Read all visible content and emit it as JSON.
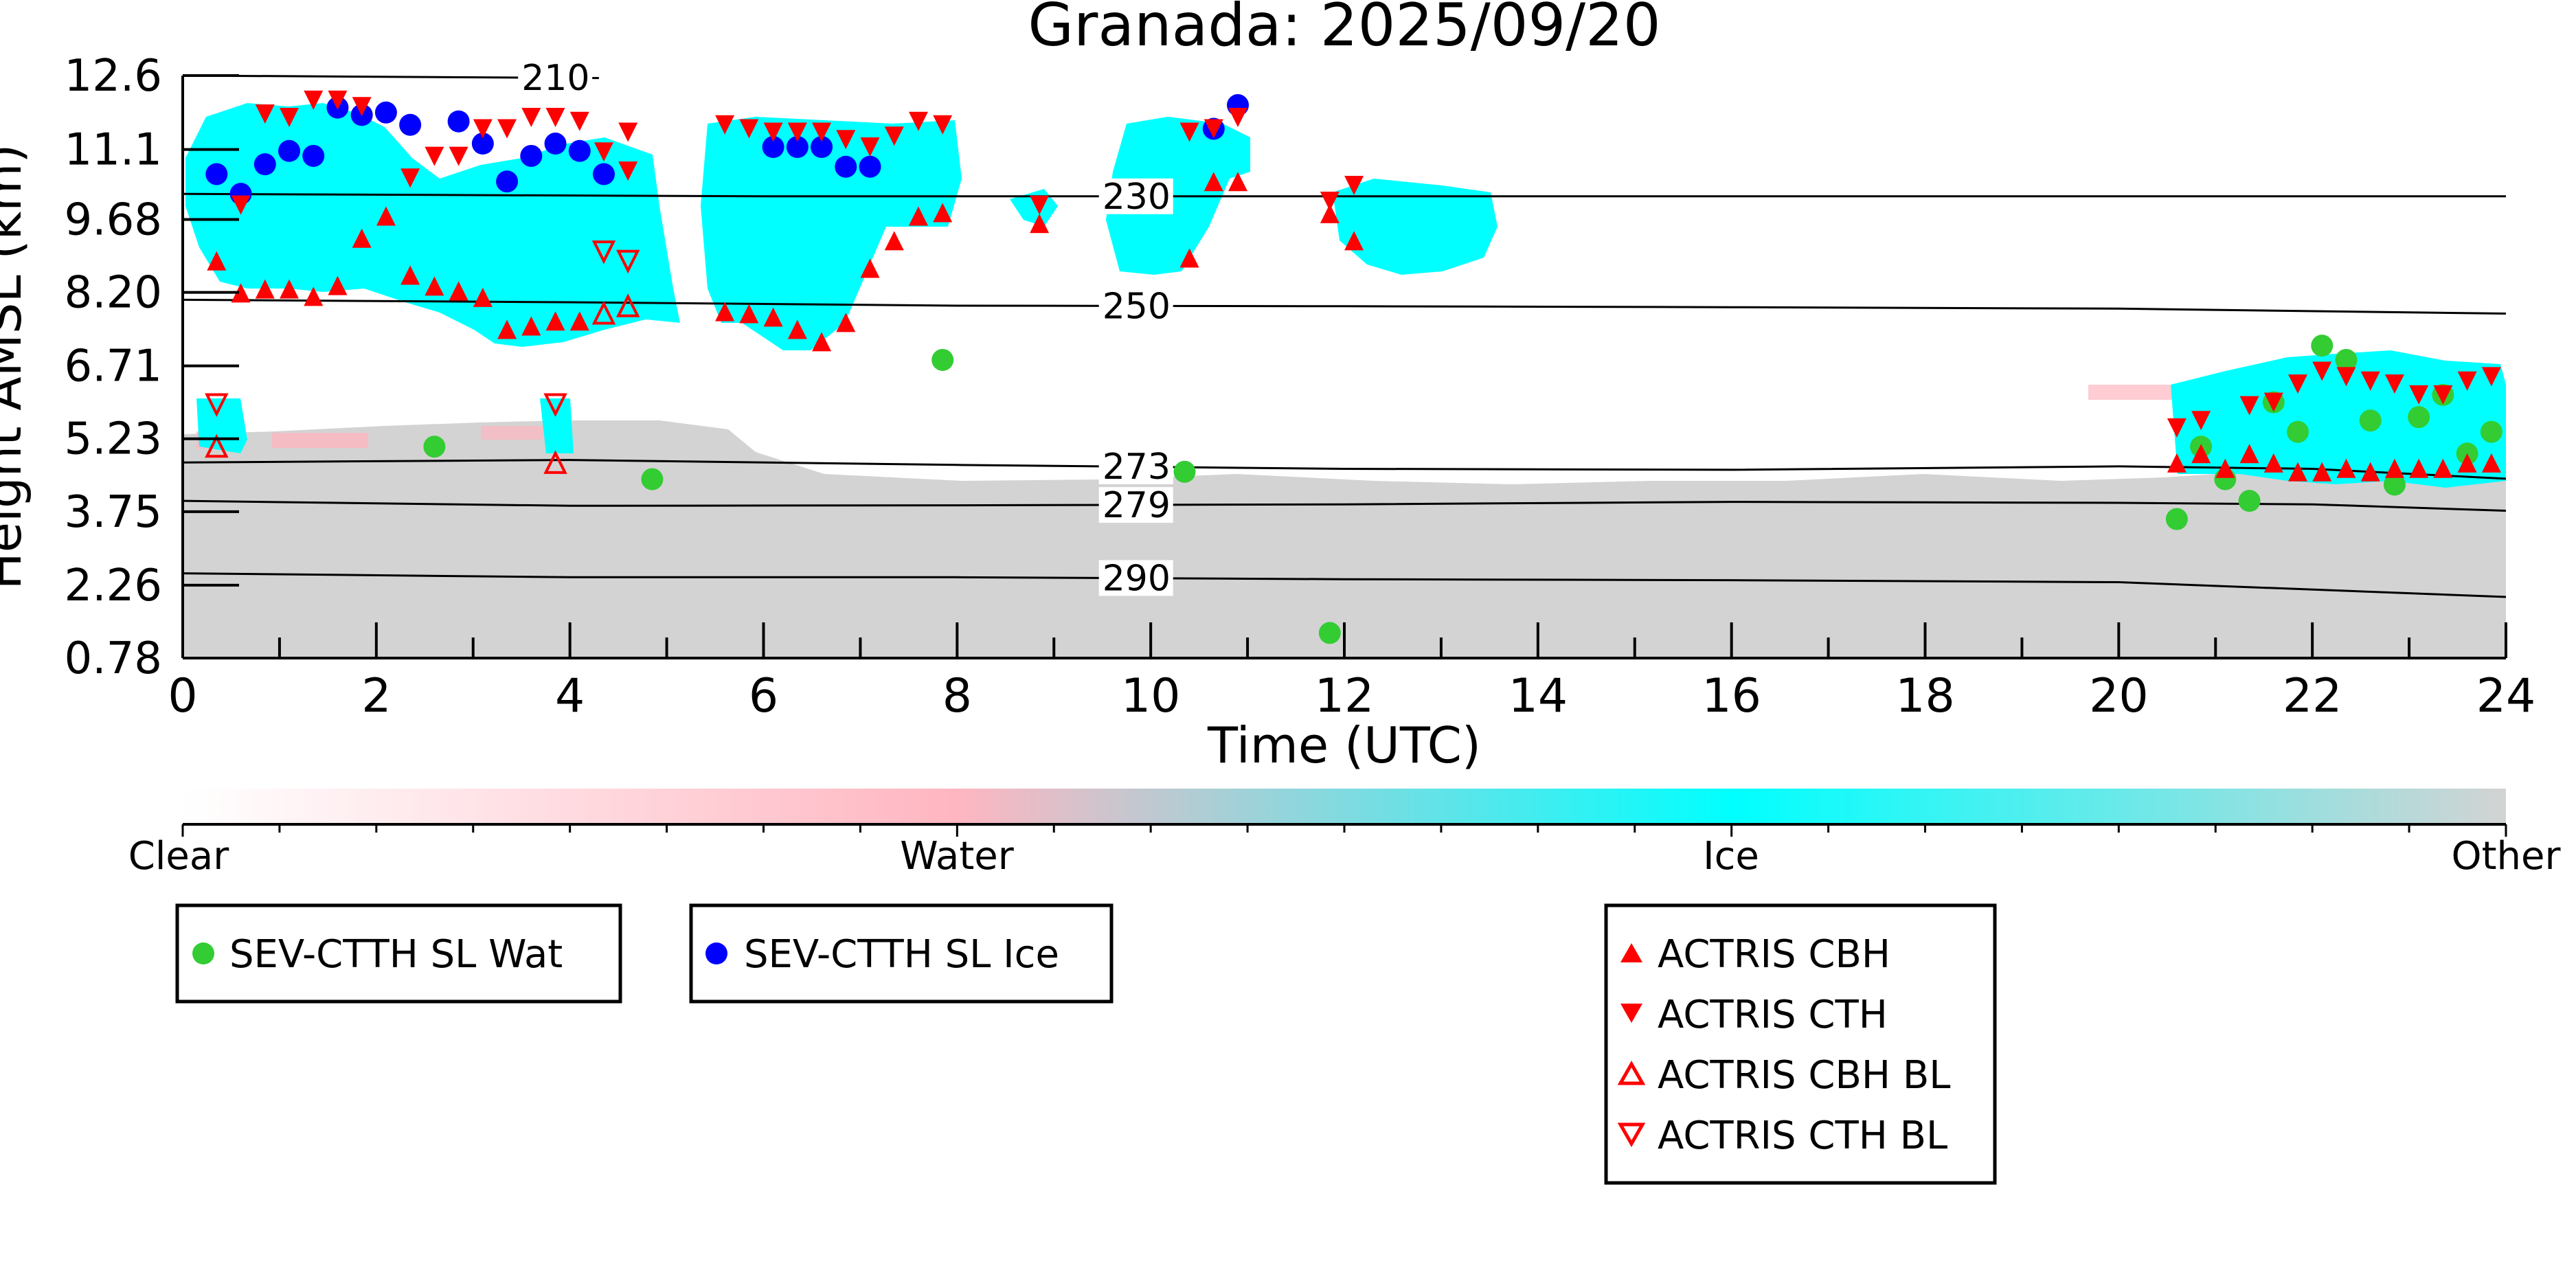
{
  "chart_data": {
    "type": "scatter",
    "title": "Granada: 2025/09/20",
    "xlabel": "Time (UTC)",
    "ylabel": "Height AMSL (km)",
    "xlim": [
      0,
      24
    ],
    "ylim": [
      0.78,
      12.6
    ],
    "x_ticks": [
      "0",
      "2",
      "4",
      "6",
      "8",
      "10",
      "12",
      "14",
      "16",
      "18",
      "20",
      "22",
      "24"
    ],
    "y_ticks": [
      "0.78",
      "2.26",
      "3.75",
      "5.23",
      "6.71",
      "8.20",
      "9.68",
      "11.1",
      "12.6"
    ],
    "y_tick_values": [
      0.78,
      2.26,
      3.75,
      5.23,
      6.71,
      8.2,
      9.68,
      11.1,
      12.6
    ],
    "colorbar": {
      "labels": [
        "Clear",
        "Water",
        "Ice",
        "Other"
      ],
      "colors": [
        "#ffffff",
        "#ffb6c1",
        "#00ffff",
        "#d3d3d3"
      ]
    },
    "isotherms": [
      {
        "label": "210",
        "label_x": 3.5,
        "points": [
          [
            0,
            12.6
          ],
          [
            4.3,
            12.55
          ]
        ]
      },
      {
        "label": "230",
        "label_x": 9.5,
        "points": [
          [
            0,
            10.2
          ],
          [
            6,
            10.15
          ],
          [
            12,
            10.15
          ],
          [
            18,
            10.15
          ],
          [
            24,
            10.15
          ]
        ]
      },
      {
        "label": "250",
        "label_x": 9.5,
        "points": [
          [
            0,
            8.05
          ],
          [
            4,
            8.0
          ],
          [
            8,
            7.93
          ],
          [
            12,
            7.92
          ],
          [
            16,
            7.9
          ],
          [
            20,
            7.87
          ],
          [
            24,
            7.77
          ]
        ]
      },
      {
        "label": "273",
        "label_x": 9.5,
        "points": [
          [
            0,
            4.75
          ],
          [
            4,
            4.8
          ],
          [
            8,
            4.7
          ],
          [
            12,
            4.62
          ],
          [
            16,
            4.6
          ],
          [
            20,
            4.67
          ],
          [
            22,
            4.62
          ],
          [
            24,
            4.42
          ]
        ]
      },
      {
        "label": "279",
        "label_x": 9.5,
        "points": [
          [
            0,
            3.97
          ],
          [
            4,
            3.87
          ],
          [
            8,
            3.88
          ],
          [
            12,
            3.9
          ],
          [
            16,
            3.95
          ],
          [
            20,
            3.93
          ],
          [
            22,
            3.9
          ],
          [
            24,
            3.77
          ]
        ]
      },
      {
        "label": "290",
        "label_x": 9.5,
        "points": [
          [
            0,
            2.5
          ],
          [
            4,
            2.42
          ],
          [
            8,
            2.42
          ],
          [
            12,
            2.38
          ],
          [
            16,
            2.36
          ],
          [
            20,
            2.32
          ],
          [
            24,
            2.02
          ]
        ]
      }
    ],
    "series": [
      {
        "name": "SEV-CTTH SL Wat",
        "marker": "circle",
        "color": "#33cc33",
        "points": [
          [
            2.6,
            5.07
          ],
          [
            4.85,
            4.41
          ],
          [
            7.85,
            6.83
          ],
          [
            10.35,
            4.56
          ],
          [
            11.85,
            1.29
          ],
          [
            20.6,
            3.6
          ],
          [
            20.85,
            5.07
          ],
          [
            21.1,
            4.41
          ],
          [
            21.35,
            3.97
          ],
          [
            21.6,
            5.97
          ],
          [
            21.85,
            5.37
          ],
          [
            22.1,
            7.12
          ],
          [
            22.35,
            6.83
          ],
          [
            22.6,
            5.6
          ],
          [
            22.85,
            4.3
          ],
          [
            23.1,
            5.67
          ],
          [
            23.35,
            6.12
          ],
          [
            23.6,
            4.93
          ],
          [
            23.85,
            5.37
          ]
        ]
      },
      {
        "name": "SEV-CTTH SL Ice",
        "marker": "circle",
        "color": "#0000ff",
        "points": [
          [
            0.35,
            10.6
          ],
          [
            0.6,
            10.2
          ],
          [
            0.85,
            10.8
          ],
          [
            1.1,
            11.07
          ],
          [
            1.35,
            10.97
          ],
          [
            1.6,
            11.95
          ],
          [
            1.85,
            11.8
          ],
          [
            2.1,
            11.85
          ],
          [
            2.35,
            11.6
          ],
          [
            2.85,
            11.67
          ],
          [
            3.1,
            11.22
          ],
          [
            3.35,
            10.45
          ],
          [
            3.6,
            10.97
          ],
          [
            3.85,
            11.22
          ],
          [
            4.1,
            11.07
          ],
          [
            4.35,
            10.6
          ],
          [
            6.1,
            11.15
          ],
          [
            6.35,
            11.15
          ],
          [
            6.6,
            11.15
          ],
          [
            6.85,
            10.75
          ],
          [
            7.1,
            10.75
          ],
          [
            10.65,
            11.52
          ],
          [
            10.9,
            12.0
          ]
        ]
      },
      {
        "name": "ACTRIS CBH",
        "marker": "triangle-up",
        "color": "#ff0000",
        "points": [
          [
            0.35,
            8.84
          ],
          [
            0.6,
            8.19
          ],
          [
            0.85,
            8.27
          ],
          [
            1.1,
            8.27
          ],
          [
            1.35,
            8.12
          ],
          [
            1.6,
            8.34
          ],
          [
            1.85,
            9.3
          ],
          [
            2.1,
            9.75
          ],
          [
            2.35,
            8.55
          ],
          [
            2.6,
            8.33
          ],
          [
            2.85,
            8.23
          ],
          [
            3.1,
            8.1
          ],
          [
            3.35,
            7.45
          ],
          [
            3.6,
            7.52
          ],
          [
            3.85,
            7.62
          ],
          [
            4.1,
            7.62
          ],
          [
            5.6,
            7.81
          ],
          [
            5.85,
            7.77
          ],
          [
            6.1,
            7.7
          ],
          [
            6.35,
            7.45
          ],
          [
            6.6,
            7.2
          ],
          [
            6.85,
            7.59
          ],
          [
            7.1,
            8.69
          ],
          [
            7.35,
            9.25
          ],
          [
            7.6,
            9.75
          ],
          [
            7.85,
            9.82
          ],
          [
            8.85,
            9.6
          ],
          [
            10.4,
            8.9
          ],
          [
            10.65,
            10.45
          ],
          [
            10.9,
            10.45
          ],
          [
            11.85,
            9.8
          ],
          [
            12.1,
            9.25
          ],
          [
            20.6,
            4.74
          ],
          [
            20.85,
            4.93
          ],
          [
            21.1,
            4.63
          ],
          [
            21.35,
            4.93
          ],
          [
            21.6,
            4.74
          ],
          [
            21.85,
            4.56
          ],
          [
            22.1,
            4.56
          ],
          [
            22.35,
            4.63
          ],
          [
            22.6,
            4.56
          ],
          [
            22.85,
            4.63
          ],
          [
            23.1,
            4.63
          ],
          [
            23.35,
            4.63
          ],
          [
            23.6,
            4.74
          ],
          [
            23.85,
            4.74
          ]
        ]
      },
      {
        "name": "ACTRIS CTH",
        "marker": "triangle-down",
        "color": "#ff0000",
        "points": [
          [
            0.6,
            9.97
          ],
          [
            0.85,
            11.82
          ],
          [
            1.1,
            11.75
          ],
          [
            1.35,
            12.1
          ],
          [
            1.6,
            12.1
          ],
          [
            1.85,
            11.97
          ],
          [
            2.35,
            10.52
          ],
          [
            2.6,
            10.96
          ],
          [
            2.85,
            10.96
          ],
          [
            3.1,
            11.52
          ],
          [
            3.35,
            11.52
          ],
          [
            3.6,
            11.75
          ],
          [
            3.85,
            11.75
          ],
          [
            4.1,
            11.67
          ],
          [
            4.35,
            11.05
          ],
          [
            4.6,
            10.66
          ],
          [
            4.6,
            11.45
          ],
          [
            5.6,
            11.6
          ],
          [
            5.85,
            11.52
          ],
          [
            6.1,
            11.45
          ],
          [
            6.35,
            11.45
          ],
          [
            6.6,
            11.45
          ],
          [
            6.85,
            11.3
          ],
          [
            7.1,
            11.15
          ],
          [
            7.35,
            11.37
          ],
          [
            7.6,
            11.67
          ],
          [
            7.85,
            11.6
          ],
          [
            8.85,
            9.97
          ],
          [
            10.4,
            11.45
          ],
          [
            10.65,
            11.52
          ],
          [
            10.9,
            11.75
          ],
          [
            11.85,
            10.05
          ],
          [
            12.1,
            10.37
          ],
          [
            20.6,
            5.45
          ],
          [
            20.85,
            5.6
          ],
          [
            21.35,
            5.9
          ],
          [
            21.6,
            5.97
          ],
          [
            21.85,
            6.34
          ],
          [
            22.1,
            6.6
          ],
          [
            22.35,
            6.49
          ],
          [
            22.6,
            6.4
          ],
          [
            22.85,
            6.34
          ],
          [
            23.1,
            6.12
          ],
          [
            23.35,
            6.12
          ],
          [
            23.6,
            6.4
          ],
          [
            23.85,
            6.49
          ]
        ]
      },
      {
        "name": "ACTRIS CBH BL",
        "marker": "triangle-up-open",
        "color": "#ff0000",
        "points": [
          [
            0.35,
            5.07
          ],
          [
            3.85,
            4.74
          ],
          [
            4.35,
            7.77
          ],
          [
            4.6,
            7.92
          ]
        ]
      },
      {
        "name": "ACTRIS CTH BL",
        "marker": "triangle-down-open",
        "color": "#ff0000",
        "points": [
          [
            0.35,
            5.93
          ],
          [
            3.85,
            5.93
          ],
          [
            4.35,
            9.03
          ],
          [
            4.6,
            8.84
          ]
        ]
      }
    ]
  }
}
